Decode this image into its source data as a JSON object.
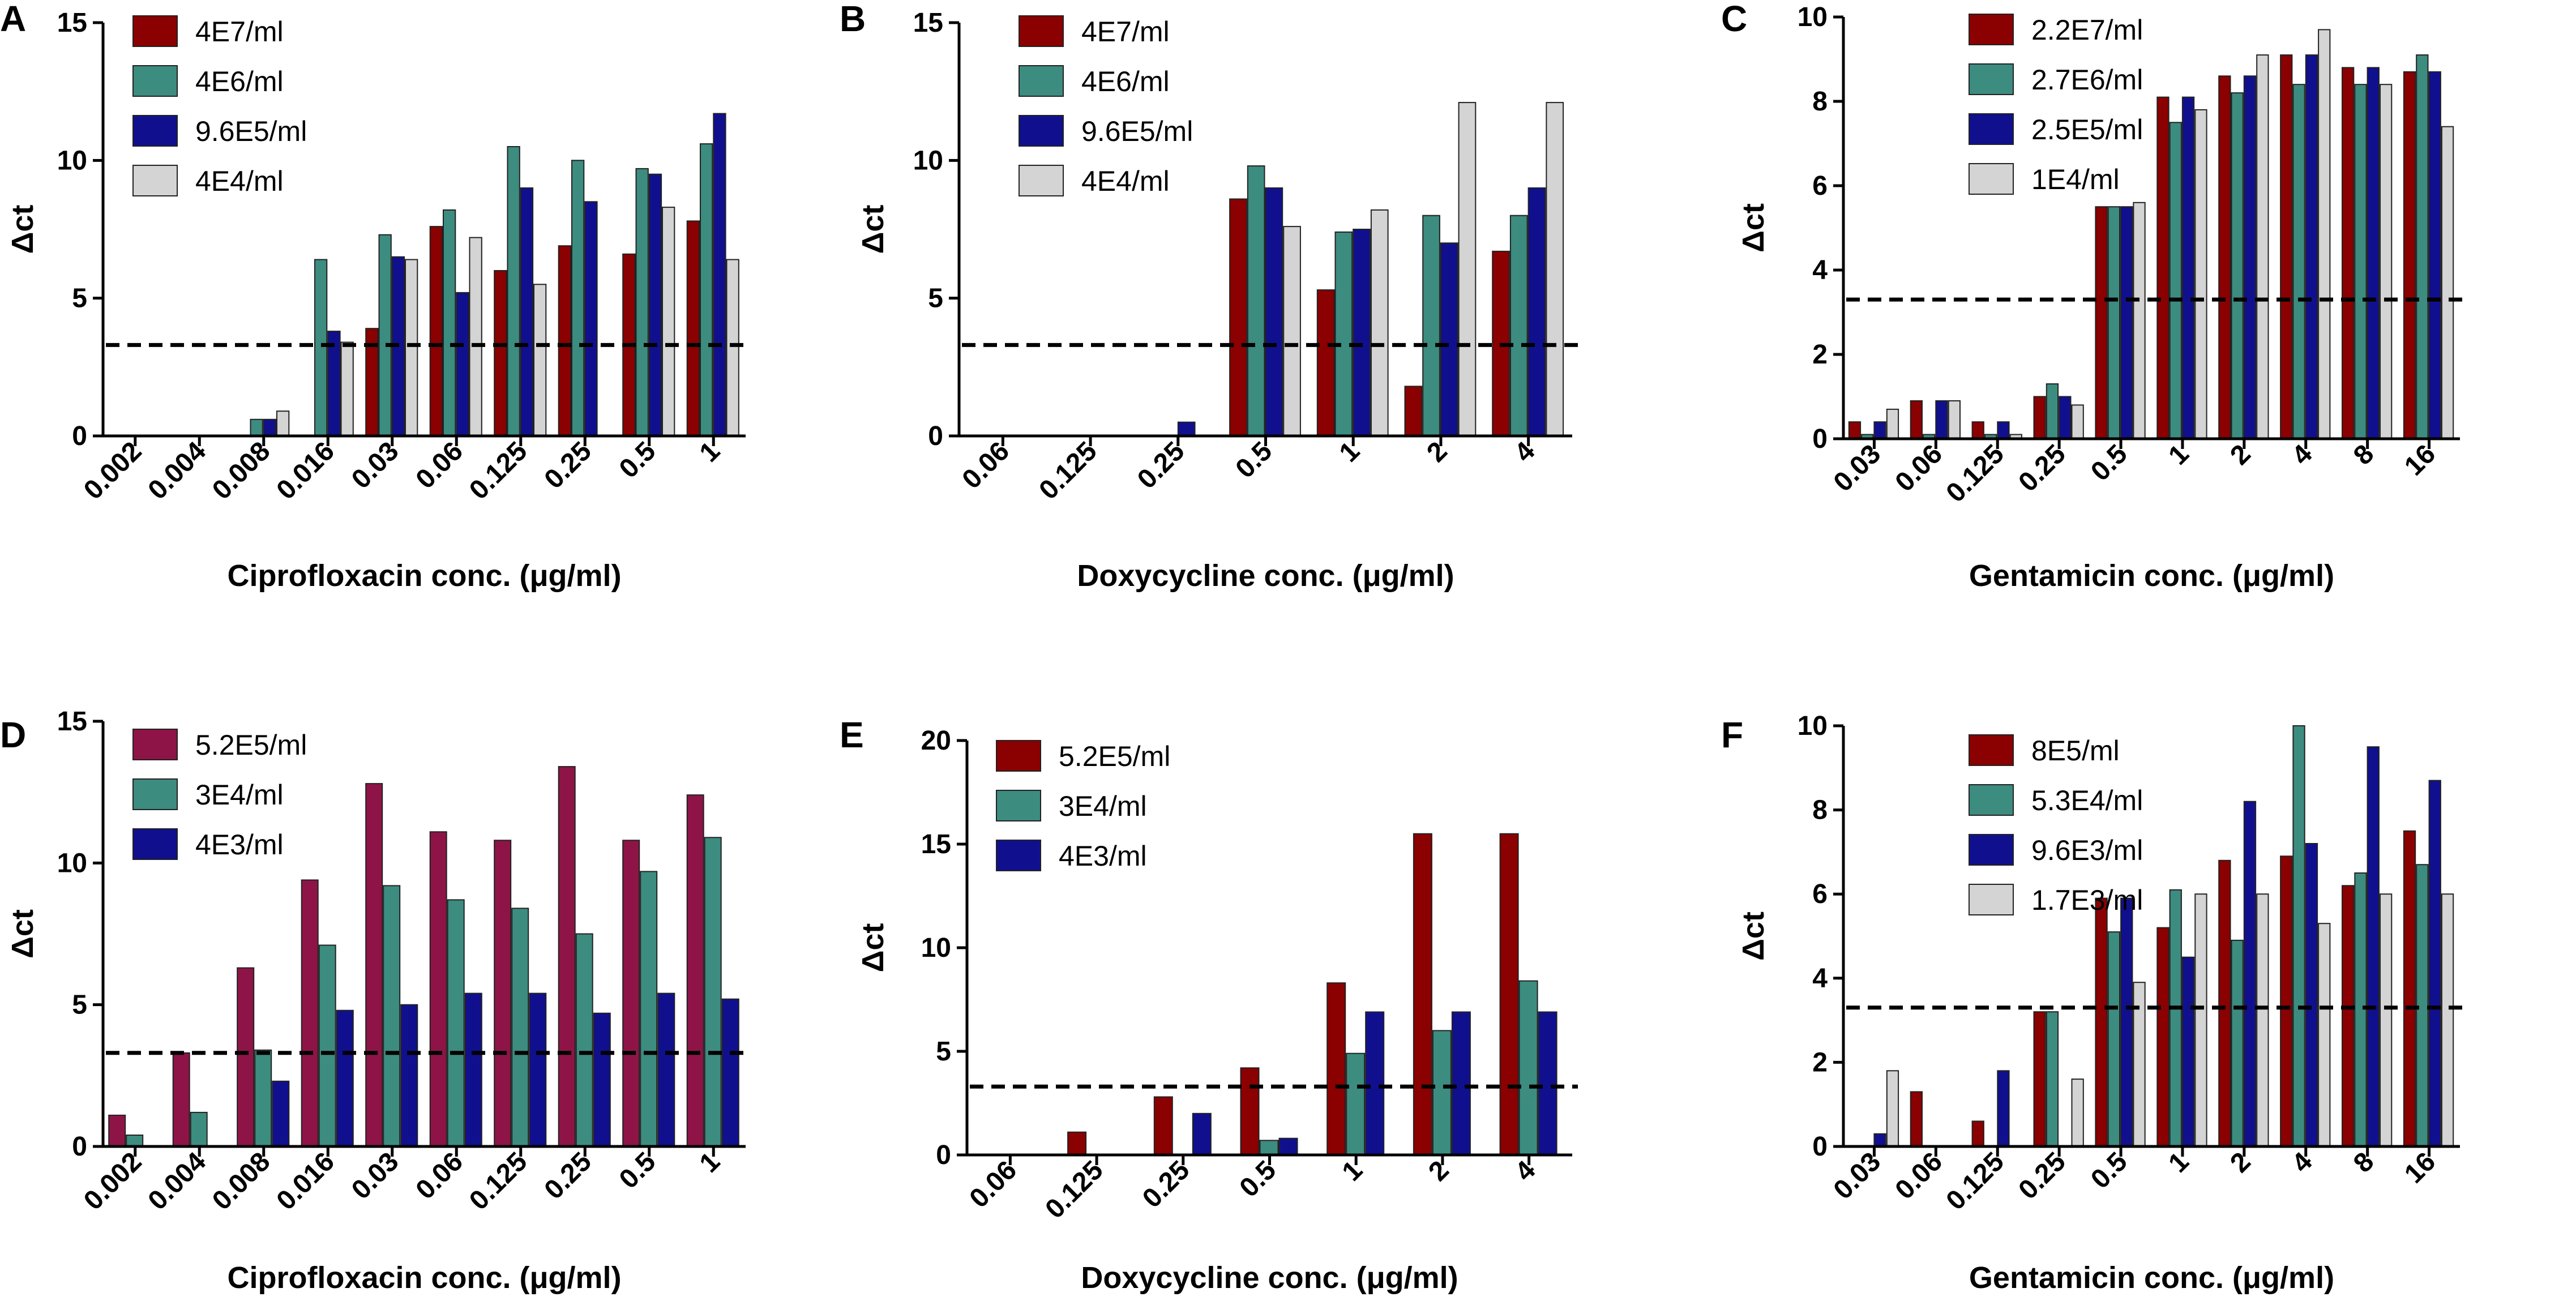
{
  "colors": {
    "dark_red": "#8b0000",
    "teal": "#3d8c80",
    "navy": "#10108f",
    "light_gray": "#d4d4d4",
    "maroon": "#8e1448",
    "threshold": "#000000"
  },
  "chart_data": [
    {
      "panel": "A",
      "type": "bar",
      "ylabel": "Δct",
      "xlabel": "Ciprofloxacin conc. (μg/ml)",
      "ylim": [
        0,
        15
      ],
      "yticks": [
        "0",
        "5",
        "10",
        "15"
      ],
      "threshold": 3.3,
      "categories": [
        "0.002",
        "0.004",
        "0.008",
        "0.016",
        "0.03",
        "0.06",
        "0.125",
        "0.25",
        "0.5",
        "1"
      ],
      "legend_position": "top-left",
      "series": [
        {
          "name": "4E7/ml",
          "color": "#8b0000",
          "values": [
            0,
            0,
            0,
            0,
            3.9,
            7.6,
            6.0,
            6.9,
            6.6,
            7.8
          ]
        },
        {
          "name": "4E6/ml",
          "color": "#3d8c80",
          "values": [
            0,
            0,
            0.6,
            6.4,
            7.3,
            8.2,
            10.5,
            10.0,
            9.7,
            10.6
          ]
        },
        {
          "name": "9.6E5/ml",
          "color": "#10108f",
          "values": [
            0,
            0,
            0.6,
            3.8,
            6.5,
            5.2,
            9.0,
            8.5,
            9.5,
            11.7
          ]
        },
        {
          "name": "4E4/ml",
          "color": "#d4d4d4",
          "values": [
            0,
            0,
            0.9,
            3.4,
            6.4,
            7.2,
            5.5,
            0,
            8.3,
            6.4
          ]
        }
      ]
    },
    {
      "panel": "B",
      "type": "bar",
      "ylabel": "Δct",
      "xlabel": "Doxycycline conc. (μg/ml)",
      "ylim": [
        0,
        15
      ],
      "yticks": [
        "0",
        "5",
        "10",
        "15"
      ],
      "threshold": 3.3,
      "categories": [
        "0.06",
        "0.125",
        "0.25",
        "0.5",
        "1",
        "2",
        "4"
      ],
      "legend_position": "top-left",
      "series": [
        {
          "name": "4E7/ml",
          "color": "#8b0000",
          "values": [
            0,
            0,
            0,
            8.6,
            5.3,
            1.8,
            6.7
          ]
        },
        {
          "name": "4E6/ml",
          "color": "#3d8c80",
          "values": [
            0,
            0,
            0,
            9.8,
            7.4,
            8.0,
            8.0
          ]
        },
        {
          "name": "9.6E5/ml",
          "color": "#10108f",
          "values": [
            0,
            0,
            0.5,
            9.0,
            7.5,
            7.0,
            9.0
          ]
        },
        {
          "name": "4E4/ml",
          "color": "#d4d4d4",
          "values": [
            0,
            0,
            0,
            7.6,
            8.2,
            12.1,
            12.1
          ]
        }
      ]
    },
    {
      "panel": "C",
      "type": "bar",
      "ylabel": "Δct",
      "xlabel": "Gentamicin conc. (μg/ml)",
      "ylim": [
        0,
        10
      ],
      "yticks": [
        "0",
        "2",
        "4",
        "6",
        "8",
        "10"
      ],
      "threshold": 3.3,
      "categories": [
        "0.03",
        "0.06",
        "0.125",
        "0.25",
        "0.5",
        "1",
        "2",
        "4",
        "8",
        "16"
      ],
      "legend_position": "top-left",
      "series": [
        {
          "name": "2.2E7/ml",
          "color": "#8b0000",
          "values": [
            0.4,
            0.9,
            0.4,
            1.0,
            5.5,
            8.1,
            8.6,
            9.1,
            8.8,
            8.7
          ]
        },
        {
          "name": "2.7E6/ml",
          "color": "#3d8c80",
          "values": [
            0.1,
            0.1,
            0.1,
            1.3,
            5.5,
            7.5,
            8.2,
            8.4,
            8.4,
            9.1
          ]
        },
        {
          "name": "2.5E5/ml",
          "color": "#10108f",
          "values": [
            0.4,
            0.9,
            0.4,
            1.0,
            5.5,
            8.1,
            8.6,
            9.1,
            8.8,
            8.7
          ]
        },
        {
          "name": "1E4/ml",
          "color": "#d4d4d4",
          "values": [
            0.7,
            0.9,
            0.1,
            0.8,
            5.6,
            7.8,
            9.1,
            9.7,
            8.4,
            7.4
          ]
        }
      ]
    },
    {
      "panel": "D",
      "type": "bar",
      "ylabel": "Δct",
      "xlabel": "Ciprofloxacin conc. (μg/ml)",
      "ylim": [
        0,
        15
      ],
      "yticks": [
        "0",
        "5",
        "10",
        "15"
      ],
      "threshold": 3.3,
      "categories": [
        "0.002",
        "0.004",
        "0.008",
        "0.016",
        "0.03",
        "0.06",
        "0.125",
        "0.25",
        "0.5",
        "1"
      ],
      "legend_position": "top-left",
      "series": [
        {
          "name": "5.2E5/ml",
          "color": "#8e1448",
          "values": [
            1.1,
            3.3,
            6.3,
            9.4,
            12.8,
            11.1,
            10.8,
            13.4,
            10.8,
            12.4
          ]
        },
        {
          "name": "3E4/ml",
          "color": "#3d8c80",
          "values": [
            0.4,
            1.2,
            3.4,
            7.1,
            9.2,
            8.7,
            8.4,
            7.5,
            9.7,
            10.9
          ]
        },
        {
          "name": "4E3/ml",
          "color": "#10108f",
          "values": [
            0,
            0,
            2.3,
            4.8,
            5.0,
            5.4,
            5.4,
            4.7,
            5.4,
            5.2
          ]
        }
      ]
    },
    {
      "panel": "E",
      "type": "bar",
      "ylabel": "Δct",
      "xlabel": "Doxycycline conc. (μg/ml)",
      "ylim": [
        0,
        20
      ],
      "yticks": [
        "0",
        "5",
        "10",
        "15",
        "20"
      ],
      "threshold": 3.3,
      "categories": [
        "0.06",
        "0.125",
        "0.25",
        "0.5",
        "1",
        "2",
        "4"
      ],
      "legend_position": "top-left",
      "series": [
        {
          "name": "5.2E5/ml",
          "color": "#8b0000",
          "values": [
            0,
            1.1,
            2.8,
            4.2,
            8.3,
            15.5,
            15.5
          ]
        },
        {
          "name": "3E4/ml",
          "color": "#3d8c80",
          "values": [
            0,
            0,
            0,
            0.7,
            4.9,
            6.0,
            8.4
          ]
        },
        {
          "name": "4E3/ml",
          "color": "#10108f",
          "values": [
            0,
            0,
            2.0,
            0.8,
            6.9,
            6.9,
            6.9
          ]
        }
      ]
    },
    {
      "panel": "F",
      "type": "bar",
      "ylabel": "Δct",
      "xlabel": "Gentamicin conc. (μg/ml)",
      "ylim": [
        0,
        10
      ],
      "yticks": [
        "0",
        "2",
        "4",
        "6",
        "8",
        "10"
      ],
      "threshold": 3.3,
      "categories": [
        "0.03",
        "0.06",
        "0.125",
        "0.25",
        "0.5",
        "1",
        "2",
        "4",
        "8",
        "16"
      ],
      "legend_position": "top-left",
      "series": [
        {
          "name": "8E5/ml",
          "color": "#8b0000",
          "values": [
            0,
            1.3,
            0.6,
            3.2,
            5.9,
            5.2,
            6.8,
            6.9,
            6.2,
            7.5
          ]
        },
        {
          "name": "5.3E4/ml",
          "color": "#3d8c80",
          "values": [
            0,
            0,
            0,
            3.2,
            5.1,
            6.1,
            4.9,
            10.0,
            6.5,
            6.7
          ]
        },
        {
          "name": "9.6E3/ml",
          "color": "#10108f",
          "values": [
            0.3,
            0,
            1.8,
            0,
            5.9,
            4.5,
            8.2,
            7.2,
            9.5,
            8.7
          ]
        },
        {
          "name": "1.7E3/ml",
          "color": "#d4d4d4",
          "values": [
            1.8,
            0,
            0,
            1.6,
            3.9,
            6.0,
            6.0,
            5.3,
            6.0,
            6.0
          ]
        }
      ]
    }
  ]
}
